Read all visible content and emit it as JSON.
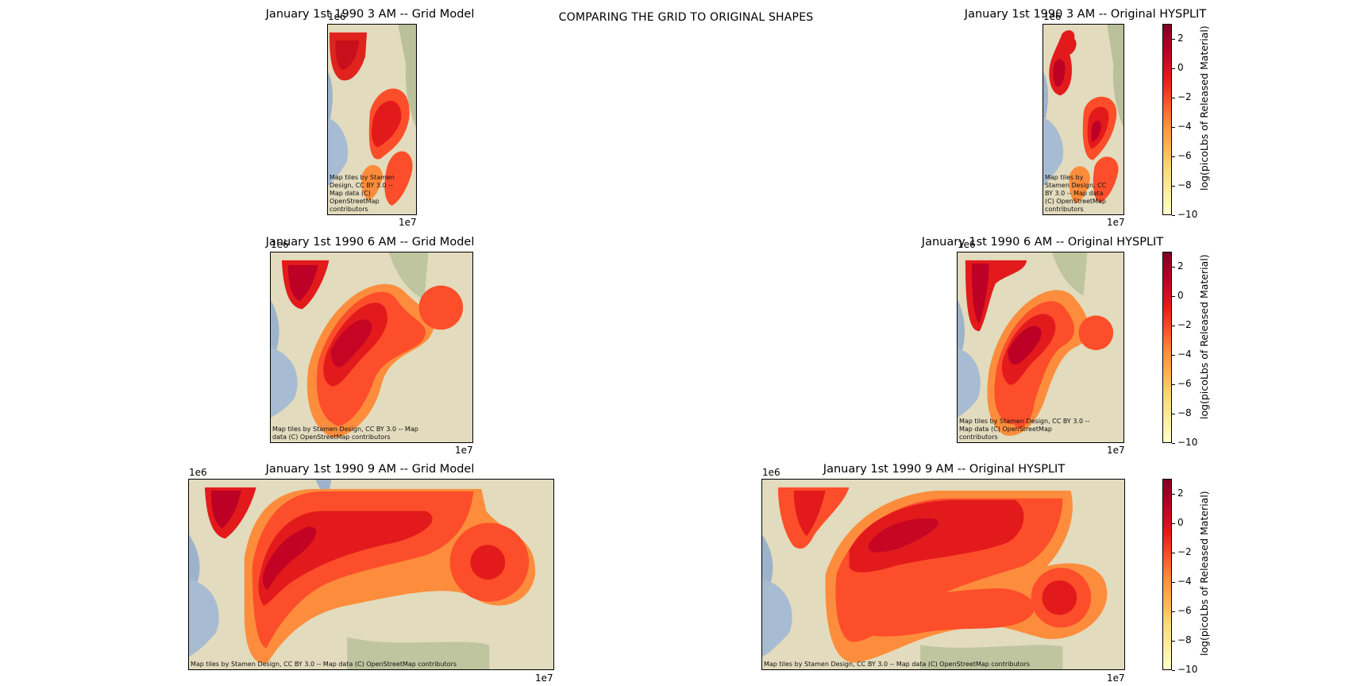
{
  "suptitle": "COMPARING THE GRID TO ORIGINAL SHAPES",
  "attribution_long": "Map tiles by Stamen Design, CC BY 3.0 -- Map data (C) OpenStreetMap contributors",
  "attribution_lines": {
    "a": [
      "Map tiles by Stamen",
      "Design, CC BY 3.0 --",
      "Map data (C)",
      "OpenStreetMap",
      "contributors"
    ],
    "b": [
      "Map tiles by",
      "Stamen Design, CC",
      "BY 3.0 -- Map data",
      "(C) OpenStreetMap",
      "contributors"
    ],
    "c": [
      "Map tiles by Stamen Design, CC BY 3.0 -- Map",
      "data (C) OpenStreetMap contributors"
    ],
    "d": [
      "Map tiles by Stamen Design, CC BY 3.0 --",
      "Map data (C) OpenStreetMap",
      "contributors"
    ]
  },
  "offsets": {
    "y": "1e6",
    "x": "1e7"
  },
  "colormap": [
    "#ffffcc",
    "#ffeda0",
    "#fed976",
    "#feb24c",
    "#fd8d3c",
    "#fc4e2a",
    "#e31a1c",
    "#bd0026",
    "#800026"
  ],
  "chart_data": [
    {
      "type": "heatmap",
      "title": "January 1st 1990 3 AM -- Grid Model",
      "x_offset_label": "1e7",
      "y_offset_label": "1e6"
    },
    {
      "type": "heatmap",
      "title": "January 1st 1990 3 AM -- Original HYSPLIT",
      "x_offset_label": "1e7",
      "y_offset_label": "1e6",
      "colorbar": {
        "label": "log(picoLbs of Released Material)",
        "ticks": [
          2,
          0,
          -2,
          -4,
          -6,
          -8,
          -10
        ],
        "range": [
          -10,
          3
        ]
      }
    },
    {
      "type": "heatmap",
      "title": "January 1st 1990 6 AM -- Grid Model",
      "x_offset_label": "1e7",
      "y_offset_label": "1e6"
    },
    {
      "type": "heatmap",
      "title": "January 1st 1990 6 AM -- Original HYSPLIT",
      "x_offset_label": "1e7",
      "y_offset_label": "1e6",
      "colorbar": {
        "label": "log(picoLbs of Released Material)",
        "ticks": [
          2,
          0,
          -2,
          -4,
          -6,
          -8,
          -10
        ],
        "range": [
          -10,
          3
        ]
      }
    },
    {
      "type": "heatmap",
      "title": "January 1st 1990 9 AM -- Grid Model",
      "x_offset_label": "1e7",
      "y_offset_label": "1e6"
    },
    {
      "type": "heatmap",
      "title": "January 1st 1990 9 AM -- Original HYSPLIT",
      "x_offset_label": "1e7",
      "y_offset_label": "1e6",
      "colorbar": {
        "label": "log(picoLbs of Released Material)",
        "ticks": [
          2,
          0,
          -2,
          -4,
          -6,
          -8,
          -10
        ],
        "range": [
          -10,
          3
        ]
      }
    }
  ]
}
